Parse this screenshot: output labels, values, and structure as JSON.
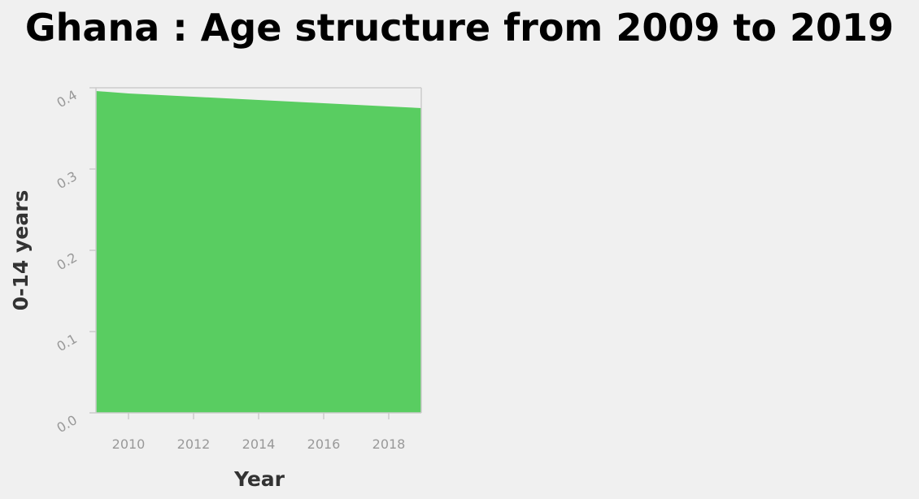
{
  "chart_data": {
    "type": "area",
    "title": "Ghana : Age structure from 2009 to 2019",
    "xlabel": "Year",
    "ylabel": "0-14 years",
    "x": [
      2009,
      2010,
      2011,
      2012,
      2013,
      2014,
      2015,
      2016,
      2017,
      2018,
      2019
    ],
    "series": [
      {
        "values": [
          0.396,
          0.393,
          0.391,
          0.389,
          0.387,
          0.385,
          0.383,
          0.381,
          0.379,
          0.377,
          0.375
        ]
      }
    ],
    "xlim": [
      2009,
      2019
    ],
    "ylim": [
      0,
      0.4
    ],
    "x_ticks": [
      2010,
      2012,
      2014,
      2016,
      2018
    ],
    "x_tick_labels": [
      "2010",
      "2012",
      "2014",
      "2016",
      "2018"
    ],
    "y_ticks": [
      0.0,
      0.1,
      0.2,
      0.3,
      0.4
    ],
    "y_tick_labels": [
      "0.0",
      "0.1",
      "0.2",
      "0.3",
      "0.4"
    ],
    "grid": false,
    "colors": {
      "fill": "#59cd61"
    }
  }
}
